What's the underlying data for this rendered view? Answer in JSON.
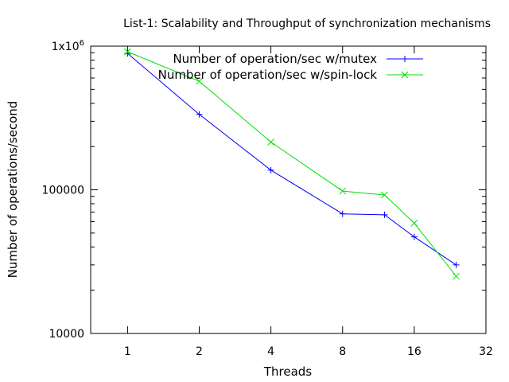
{
  "chart_data": {
    "type": "line",
    "title": "List-1: Scalability and Throughput of synchronization mechanisms",
    "xlabel": "Threads",
    "ylabel": "Number of operations/second",
    "xscale": "log2",
    "yscale": "log10",
    "xlim": [
      0.7,
      32
    ],
    "ylim": [
      10000,
      1000000
    ],
    "x_ticks": [
      {
        "value": 1,
        "label": "1"
      },
      {
        "value": 2,
        "label": "2"
      },
      {
        "value": 4,
        "label": "4"
      },
      {
        "value": 8,
        "label": "8"
      },
      {
        "value": 16,
        "label": "16"
      },
      {
        "value": 32,
        "label": "32"
      }
    ],
    "y_ticks": [
      {
        "value": 10000,
        "label": "10000",
        "mantissa": "",
        "exponent": ""
      },
      {
        "value": 100000,
        "label": "100000",
        "mantissa": "",
        "exponent": ""
      },
      {
        "value": 1000000,
        "label": "",
        "mantissa": "1x10",
        "exponent": "6"
      }
    ],
    "grid": false,
    "legend_position": "top-right",
    "series": [
      {
        "name": "Number of operation/sec w/mutex",
        "color": "#0000ff",
        "marker": "plus",
        "x": [
          1,
          2,
          4,
          8,
          12,
          16,
          24
        ],
        "y": [
          890000,
          335000,
          137000,
          68000,
          67000,
          47000,
          30000
        ]
      },
      {
        "name": "Number of operation/sec w/spin-lock",
        "color": "#00e000",
        "marker": "cross",
        "x": [
          1,
          2,
          4,
          8,
          12,
          16,
          24
        ],
        "y": [
          915000,
          570000,
          215000,
          98000,
          92000,
          58500,
          25000
        ]
      }
    ]
  }
}
